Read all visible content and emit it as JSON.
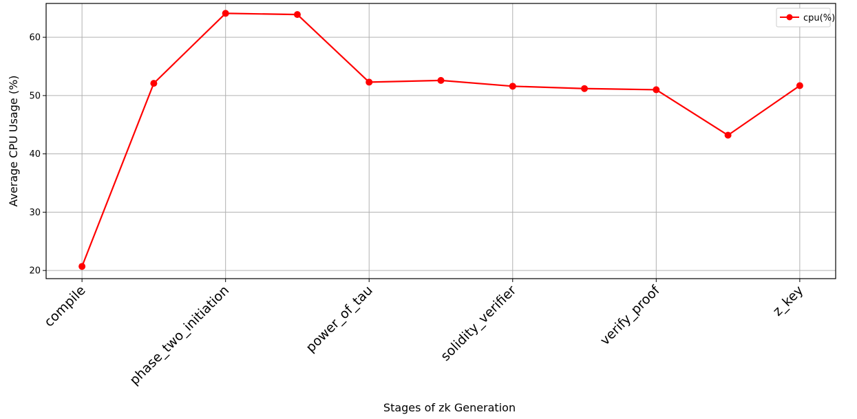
{
  "chart_data": {
    "type": "line",
    "title": "",
    "xlabel": "Stages of zk Generation",
    "ylabel": "Average CPU Usage (%)",
    "x_tick_labels": [
      "compile",
      "phase_two_initiation",
      "power_of_tau",
      "solidity_verifier",
      "verify_proof",
      "z_key"
    ],
    "x_tick_indices": [
      0,
      2,
      4,
      6,
      8,
      10
    ],
    "y_ticks": [
      20,
      30,
      40,
      50,
      60
    ],
    "ylim": [
      18.6,
      65.8
    ],
    "xlim": [
      -0.5,
      10.5
    ],
    "grid": true,
    "legend_position": "top-right",
    "series": [
      {
        "name": "cpu(%)",
        "color": "#ff0000",
        "marker": "circle",
        "x": [
          0,
          1,
          2,
          3,
          4,
          5,
          6,
          7,
          8,
          9,
          10
        ],
        "values": [
          20.7,
          52.1,
          64.1,
          63.9,
          52.3,
          52.6,
          51.6,
          51.2,
          51.0,
          43.2,
          51.7
        ]
      }
    ]
  }
}
